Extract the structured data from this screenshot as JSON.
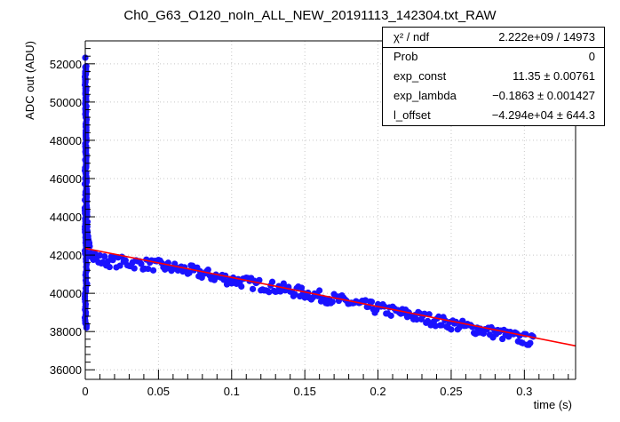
{
  "chart_data": {
    "type": "scatter",
    "title": "Ch0_G63_O120_noIn_ALL_NEW_20191113_142304.txt_RAW",
    "xlabel": "time (s)",
    "ylabel": "ADC out (ADU)",
    "xlim": [
      0,
      0.335
    ],
    "ylim": [
      35500,
      53200
    ],
    "x_ticks": [
      0,
      0.05,
      0.1,
      0.15,
      0.2,
      0.25,
      0.3
    ],
    "x_tick_labels": [
      "0",
      "0.05",
      "0.1",
      "0.15",
      "0.2",
      "0.25",
      "0.3"
    ],
    "y_ticks": [
      36000,
      38000,
      40000,
      42000,
      44000,
      46000,
      48000,
      50000,
      52000
    ],
    "y_tick_labels": [
      "36000",
      "38000",
      "40000",
      "42000",
      "44000",
      "46000",
      "48000",
      "50000",
      "52000"
    ],
    "marker_color": "#1a12ff",
    "fit_color": "#ff0000",
    "series": [
      {
        "type": "points",
        "x": [
          0,
          0.0003,
          0.0006,
          0.001,
          0.0015,
          0.002,
          0.003,
          0.005,
          0.008,
          0.012,
          0.02,
          0.03,
          0.05,
          0.07,
          0.1,
          0.13,
          0.15,
          0.17,
          0.2,
          0.22,
          0.25,
          0.27,
          0.3,
          0.307
        ],
        "y": [
          52000,
          49000,
          46500,
          44500,
          43200,
          42600,
          42300,
          42100,
          41800,
          41700,
          41650,
          41600,
          41450,
          41200,
          40700,
          40300,
          40000,
          39700,
          39200,
          38900,
          38400,
          38100,
          37600,
          37500
        ],
        "spread": [
          400,
          600,
          600,
          500,
          400,
          300,
          300,
          300,
          300,
          300,
          300,
          300,
          300,
          300,
          300,
          300,
          300,
          300,
          300,
          300,
          300,
          300,
          300,
          300
        ]
      },
      {
        "type": "fit_line",
        "x": [
          0,
          0.335
        ],
        "y": [
          42350,
          37250
        ]
      }
    ],
    "outliers": [
      {
        "x": 0.0005,
        "y": 38400
      },
      {
        "x": 0.0008,
        "y": 38200
      },
      {
        "x": 0.0012,
        "y": 40500
      },
      {
        "x": 0.001,
        "y": 41200
      }
    ]
  },
  "stats": {
    "header_key": "χ² / ndf",
    "header_val": "2.222e+09 / 14973",
    "rows": [
      {
        "key": "Prob",
        "val": "0"
      },
      {
        "key": "exp_const",
        "val": "11.35 ± 0.00761"
      },
      {
        "key": "exp_lambda",
        "val": "−0.1863 ± 0.001427"
      },
      {
        "key": "l_offset",
        "val": "−4.294e+04 ± 644.3"
      }
    ]
  }
}
